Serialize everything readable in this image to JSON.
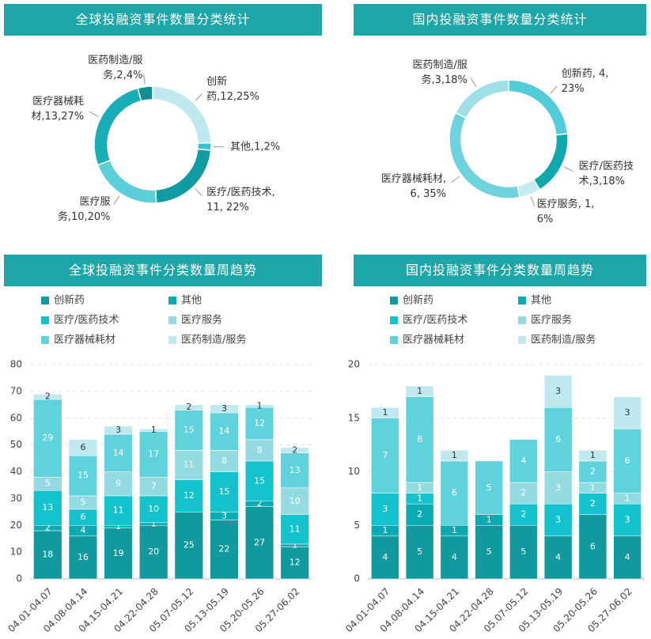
{
  "chart_data": [
    {
      "type": "donut",
      "title": "全球投融资事件数量分类统计",
      "values": [
        12,
        1,
        11,
        10,
        13,
        2
      ],
      "value_labels": [
        "创新药,12,25%",
        "其他,1,2%",
        "医疗/医药技术, 11, 22%",
        "医疗服务,10,20%",
        "医疗器械耗材,13,27%",
        "医药制造/服务,2,4%"
      ],
      "colors": [
        "#bfe9ee",
        "#3cc3d0",
        "#0e9ca2",
        "#5dcfda",
        "#19adb8",
        "#138f93"
      ]
    },
    {
      "type": "donut",
      "title": "国内投融资事件数量分类统计",
      "values": [
        4,
        3,
        1,
        6,
        3
      ],
      "value_labels": [
        "创新药, 4, 23%",
        "医疗/医药技术,3,18%",
        "医疗服务, 1, 6%",
        "医疗器械耗材, 6, 35%",
        "医药制造/服务,3,18%"
      ],
      "colors": [
        "#52cdd8",
        "#10a7ad",
        "#c3ebf0",
        "#6fd3dd",
        "#9fe0e8"
      ]
    },
    {
      "type": "stacked_bar",
      "title": "全球投融资事件分类数量周趋势",
      "categories": [
        "04.01-04.07",
        "04.08-04.14",
        "04.15-04.21",
        "04.22-04.28",
        "05.07-05.12",
        "05.13-05.19",
        "05.20-05.26",
        "05.27-06.02"
      ],
      "series": [
        {
          "name": "创新药",
          "color": "#11999e",
          "values": [
            18,
            16,
            19,
            20,
            25,
            22,
            27,
            12
          ]
        },
        {
          "name": "其他",
          "color": "#0aaab3",
          "values": [
            2,
            4,
            1,
            1,
            0,
            3,
            2,
            1
          ]
        },
        {
          "name": "医疗/医药技术",
          "color": "#13c2cc",
          "values": [
            13,
            6,
            11,
            10,
            12,
            15,
            15,
            11
          ]
        },
        {
          "name": "医疗服务",
          "color": "#93dbe1",
          "values": [
            5,
            5,
            9,
            7,
            11,
            8,
            8,
            10
          ]
        },
        {
          "name": "医疗器械耗材",
          "color": "#5fd2dc",
          "values": [
            29,
            15,
            14,
            17,
            15,
            14,
            12,
            13
          ]
        },
        {
          "name": "医药制造/服务",
          "color": "#bfe9ee",
          "values": [
            2,
            6,
            3,
            1,
            2,
            3,
            1,
            2
          ]
        }
      ],
      "ylim": [
        0,
        80
      ],
      "yticks": [
        0,
        10,
        20,
        30,
        40,
        50,
        60,
        70,
        80
      ],
      "grid": true
    },
    {
      "type": "stacked_bar",
      "title": "国内投融资事件分类数量周趋势",
      "categories": [
        "04.01-04.07",
        "04.08-04.14",
        "04.15-04.21",
        "04.22-04.28",
        "05.07-05.12",
        "05.13-05.19",
        "05.20-05.26",
        "05.27-06.02"
      ],
      "series": [
        {
          "name": "创新药",
          "color": "#11999e",
          "values": [
            4,
            5,
            4,
            5,
            5,
            4,
            6,
            4
          ]
        },
        {
          "name": "其他",
          "color": "#0aaab3",
          "values": [
            1,
            2,
            1,
            1,
            0,
            0,
            0,
            0
          ]
        },
        {
          "name": "医疗/医药技术",
          "color": "#13c2cc",
          "values": [
            3,
            1,
            0,
            0,
            2,
            3,
            2,
            3
          ]
        },
        {
          "name": "医疗服务",
          "color": "#93dbe1",
          "values": [
            0,
            1,
            0,
            0,
            2,
            3,
            1,
            1
          ]
        },
        {
          "name": "医疗器械耗材",
          "color": "#5fd2dc",
          "values": [
            7,
            8,
            6,
            5,
            4,
            6,
            2,
            6
          ]
        },
        {
          "name": "医药制造/服务",
          "color": "#bfe9ee",
          "values": [
            1,
            1,
            1,
            0,
            0,
            3,
            1,
            3
          ]
        }
      ],
      "ylim": [
        0,
        20
      ],
      "yticks": [
        0,
        5,
        10,
        15,
        20
      ],
      "grid": true
    }
  ]
}
